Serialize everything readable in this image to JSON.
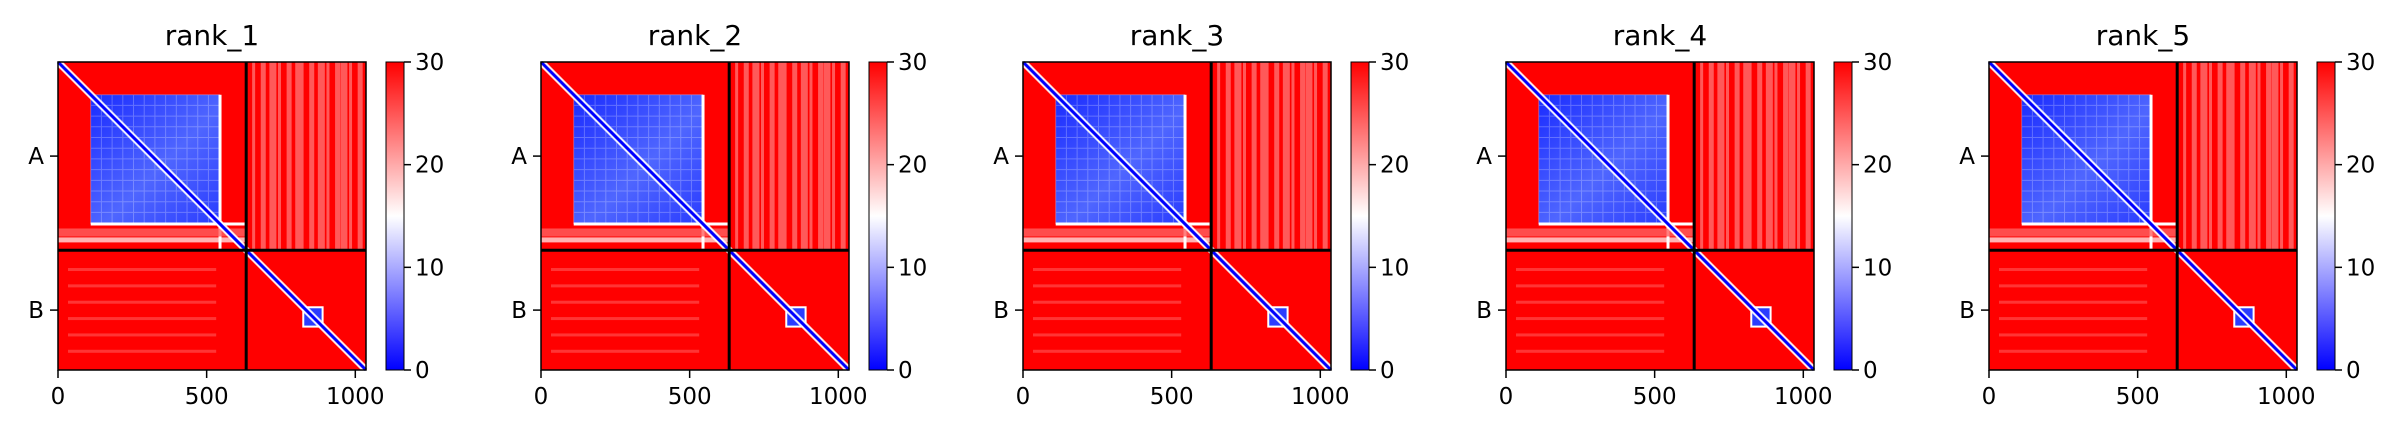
{
  "chart_data": {
    "type": "heatmap",
    "colormap": "bwr",
    "colors": {
      "low": "#0000ff",
      "mid": "#ffffff",
      "high": "#ff0000",
      "divider": "#000000"
    },
    "panels": [
      {
        "title": "rank_1"
      },
      {
        "title": "rank_2"
      },
      {
        "title": "rank_3"
      },
      {
        "title": "rank_4"
      },
      {
        "title": "rank_5"
      }
    ],
    "xlim": [
      0,
      1036
    ],
    "x_ticks": [
      0,
      500,
      1000
    ],
    "x_tick_labels": [
      "0",
      "500",
      "1000"
    ],
    "chain_boundary": 633,
    "y_tick_labels": [
      "A",
      "B"
    ],
    "colorbar": {
      "range": [
        0,
        30
      ],
      "ticks": [
        0,
        10,
        20,
        30
      ],
      "tick_labels": [
        "0",
        "10",
        "20",
        "30"
      ]
    },
    "grid": false
  }
}
